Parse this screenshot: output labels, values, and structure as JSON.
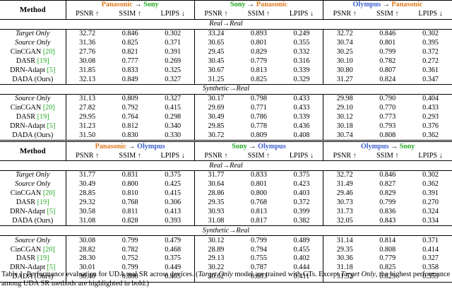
{
  "header": {
    "method": "Method",
    "arrow": "→",
    "metrics": [
      "PSNR ↑",
      "SSIM ↑",
      "LPIPS ↓"
    ]
  },
  "colors": {
    "panasonic": "#e07b20",
    "sony": "#22aa22",
    "olympus": "#3a5fcd",
    "citation": "#22aa22"
  },
  "blocks": [
    {
      "pairs": [
        {
          "src": "Panasonic",
          "src_color": "orange",
          "tgt": "Sony",
          "tgt_color": "green"
        },
        {
          "src": "Sony",
          "src_color": "green",
          "tgt": "Panasonic",
          "tgt_color": "orange"
        },
        {
          "src": "Olympus",
          "src_color": "blue",
          "tgt": "Panasonic",
          "tgt_color": "orange"
        }
      ],
      "sections": [
        {
          "label": "Real→Real",
          "rows": [
            {
              "method": "Target Only",
              "italic": true,
              "cite": "",
              "suffix": "",
              "values": [
                "32.72",
                "0.846",
                "0.302",
                "33.24",
                "0.893",
                "0.249",
                "32.72",
                "0.846",
                "0.302"
              ],
              "bold": []
            },
            {
              "method": "Source Only",
              "italic": true,
              "cite": "",
              "suffix": "",
              "values": [
                "31.36",
                "0.825",
                "0.371",
                "30.65",
                "0.801",
                "0.355",
                "30.74",
                "0.801",
                "0.395"
              ],
              "bold": []
            },
            {
              "method": "CinCGAN ",
              "italic": false,
              "cite": "[20]",
              "suffix": "",
              "values": [
                "27.76",
                "0.821",
                "0.391",
                "29.45",
                "0.829",
                "0.332",
                "30.25",
                "0.799",
                "0.372"
              ],
              "bold": []
            },
            {
              "method": "DASR ",
              "italic": false,
              "cite": "[19]",
              "suffix": "",
              "values": [
                "30.08",
                "0.777",
                "0.269",
                "30.45",
                "0.779",
                "0.316",
                "30.10",
                "0.782",
                "0.272"
              ],
              "bold": [
                2,
                5,
                8
              ]
            },
            {
              "method": "DRN-Adapt ",
              "italic": false,
              "cite": "[5]",
              "suffix": "",
              "values": [
                "31.85",
                "0.833",
                "0.325",
                "30.67",
                "0.813",
                "0.339",
                "30.80",
                "0.807",
                "0.361"
              ],
              "bold": []
            },
            {
              "method": "DADA (Ours)",
              "italic": false,
              "cite": "",
              "suffix": "",
              "values": [
                "32.13",
                "0.849",
                "0.327",
                "31.25",
                "0.825",
                "0.329",
                "31.27",
                "0.824",
                "0.347"
              ],
              "bold": [
                0,
                1,
                3,
                4,
                6,
                7
              ]
            }
          ]
        },
        {
          "label": "Synthetic→Real",
          "rows": [
            {
              "method": "Source Only",
              "italic": true,
              "cite": "",
              "suffix": "",
              "values": [
                "31.13",
                "0.809",
                "0.327",
                "30.17",
                "0.798",
                "0.433",
                "29.98",
                "0.790",
                "0.404"
              ],
              "bold": []
            },
            {
              "method": "CinCGAN ",
              "italic": false,
              "cite": "[20]",
              "suffix": "",
              "values": [
                "27.82",
                "0.792",
                "0.415",
                "29.69",
                "0.771",
                "0.433",
                "29.10",
                "0.770",
                "0.433"
              ],
              "bold": []
            },
            {
              "method": "DASR ",
              "italic": false,
              "cite": "[19]",
              "suffix": "",
              "values": [
                "29.95",
                "0.764",
                "0.298",
                "30.49",
                "0.786",
                "0.339",
                "30.12",
                "0.773",
                "0.293"
              ],
              "bold": [
                2,
                5,
                8
              ]
            },
            {
              "method": "DRN-Adapt ",
              "italic": false,
              "cite": "[5]",
              "suffix": "",
              "values": [
                "31.23",
                "0.812",
                "0.340",
                "29.85",
                "0.778",
                "0.436",
                "30.18",
                "0.793",
                "0.376"
              ],
              "bold": []
            },
            {
              "method": "DADA (Ours)",
              "italic": false,
              "cite": "",
              "suffix": "",
              "values": [
                "31.50",
                "0.830",
                "0.330",
                "30.72",
                "0.809",
                "0.408",
                "30.74",
                "0.808",
                "0.362"
              ],
              "bold": [
                0,
                1,
                3,
                4,
                6,
                7
              ]
            }
          ]
        }
      ]
    },
    {
      "pairs": [
        {
          "src": "Panasonic",
          "src_color": "orange",
          "tgt": "Olympus",
          "tgt_color": "blue"
        },
        {
          "src": "Sony",
          "src_color": "green",
          "tgt": "Olympus",
          "tgt_color": "blue"
        },
        {
          "src": "Olympus",
          "src_color": "blue",
          "tgt": "Sony",
          "tgt_color": "green"
        }
      ],
      "sections": [
        {
          "label": "Real→Real",
          "rows": [
            {
              "method": "Target Only",
              "italic": true,
              "cite": "",
              "suffix": "",
              "values": [
                "31.77",
                "0.831",
                "0.375",
                "31.77",
                "0.833",
                "0.375",
                "32.72",
                "0.846",
                "0.302"
              ],
              "bold": []
            },
            {
              "method": "Source Only",
              "italic": true,
              "cite": "",
              "suffix": "",
              "values": [
                "30.49",
                "0.800",
                "0.425",
                "30.64",
                "0.801",
                "0.423",
                "31.49",
                "0.827",
                "0.362"
              ],
              "bold": []
            },
            {
              "method": "CinCGAN ",
              "italic": false,
              "cite": "[20]",
              "suffix": "",
              "values": [
                "28.85",
                "0.810",
                "0.415",
                "28.86",
                "0.800",
                "0.403",
                "29.46",
                "0.829",
                "0.391"
              ],
              "bold": []
            },
            {
              "method": "DASR ",
              "italic": false,
              "cite": "[19]",
              "suffix": "",
              "values": [
                "29.32",
                "0.768",
                "0.306",
                "29.35",
                "0.768",
                "0.372",
                "30.73",
                "0.799",
                "0.270"
              ],
              "bold": [
                2,
                5,
                8
              ]
            },
            {
              "method": "DRN-Adapt ",
              "italic": false,
              "cite": "[5]",
              "suffix": "",
              "values": [
                "30.58",
                "0.811",
                "0.413",
                "30.93",
                "0.813",
                "0.399",
                "31.73",
                "0.836",
                "0.324"
              ],
              "bold": []
            },
            {
              "method": "DADA (Ours)",
              "italic": false,
              "cite": "",
              "suffix": "",
              "values": [
                "31.08",
                "0.828",
                "0.393",
                "31.08",
                "0.817",
                "0.382",
                "32.05",
                "0.843",
                "0.334"
              ],
              "bold": [
                0,
                1,
                3,
                4,
                6,
                7
              ]
            }
          ]
        },
        {
          "label": "Synthetic→Real",
          "rows": [
            {
              "method": "Source Only",
              "italic": true,
              "cite": "",
              "suffix": "",
              "values": [
                "30.08",
                "0.799",
                "0.479",
                "30.12",
                "0.799",
                "0.489",
                "31.14",
                "0.814",
                "0.371"
              ],
              "bold": []
            },
            {
              "method": "CinCGAN ",
              "italic": false,
              "cite": "[20]",
              "suffix": "",
              "values": [
                "28.82",
                "0.782",
                "0.468",
                "28.89",
                "0.794",
                "0.455",
                "29.35",
                "0.808",
                "0.414"
              ],
              "bold": []
            },
            {
              "method": "DASR ",
              "italic": false,
              "cite": "[19]",
              "suffix": "",
              "values": [
                "28.30",
                "0.752",
                "0.375",
                "29.13",
                "0.755",
                "0.402",
                "30.36",
                "0.779",
                "0.327"
              ],
              "bold": [
                2,
                5,
                8
              ]
            },
            {
              "method": "DRN-Adapt ",
              "italic": false,
              "cite": "[5]",
              "suffix": "",
              "values": [
                "30.01",
                "0.799",
                "0.449",
                "30.22",
                "0.787",
                "0.444",
                "31.18",
                "0.825",
                "0.358"
              ],
              "bold": []
            },
            {
              "method": "DADA (Ours)",
              "italic": false,
              "cite": "",
              "suffix": "",
              "values": [
                "30.40",
                "0.800",
                "0.405",
                "30.62",
                "0.803",
                "0.411",
                "31.52",
                "0.829",
                "0.355"
              ],
              "bold": [
                0,
                1,
                3,
                4,
                6,
                7
              ]
            }
          ]
        }
      ]
    }
  ],
  "caption": {
    "p1": "Table 1. Performance evaluation for UDA real SR across devices. (",
    "p2_italic": "Target Only",
    "p3": " model are trained with GTs. Except ",
    "p4_italic": "Target Only",
    "p5": ", the highest performance among UDA SR methods are highlighted in bold.)"
  }
}
